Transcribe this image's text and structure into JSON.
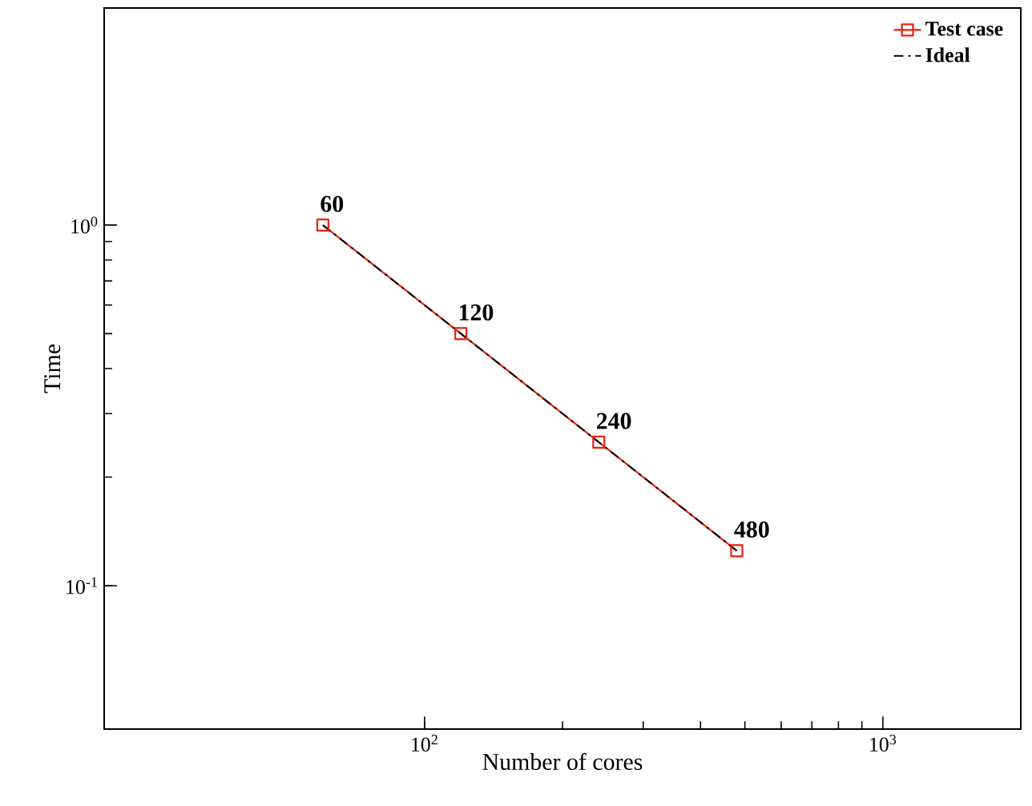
{
  "chart_data": {
    "type": "line",
    "xlabel": "Number of cores",
    "ylabel": "Time",
    "log": "xy",
    "xlim": [
      20,
      2000
    ],
    "ylim": [
      0.04,
      4
    ],
    "xticks": [
      {
        "value": 100,
        "label": "10$^{2}$"
      },
      {
        "value": 1000,
        "label": "10$^{3}$"
      }
    ],
    "yticks": [
      {
        "value": 0.1,
        "label": "10$^{-1}$"
      },
      {
        "value": 1,
        "label": "10$^{0}$"
      }
    ],
    "x": [
      60,
      120,
      240,
      480
    ],
    "series": [
      {
        "name": "Test case",
        "color": "#e8210a",
        "values": [
          1,
          0.5,
          0.25,
          0.125
        ],
        "marker": "square",
        "line_style": "solid"
      },
      {
        "name": "Ideal",
        "color": "#000000",
        "values": [
          1,
          0.5,
          0.25,
          0.125
        ],
        "marker": "none",
        "line_style": "dashdot"
      }
    ],
    "annotations": [
      {
        "text": "60",
        "x": 60,
        "y": 1
      },
      {
        "text": "120",
        "x": 120,
        "y": 0.5
      },
      {
        "text": "240",
        "x": 240,
        "y": 0.25
      },
      {
        "text": "480",
        "x": 480,
        "y": 0.125
      }
    ],
    "legend": "top right",
    "grid": false
  }
}
